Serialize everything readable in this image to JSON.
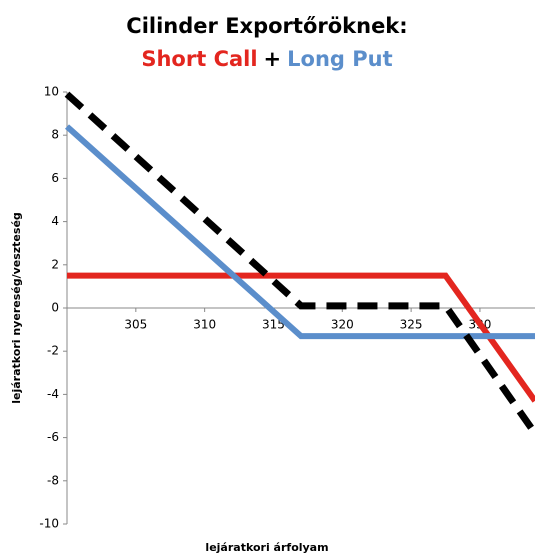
{
  "chart_data": {
    "type": "line",
    "title": "Cilinder Exportőröknek:",
    "legend_separator": "+",
    "xlabel": "lejáratkori árfolyam",
    "ylabel": "lejáratkori nyereség/veszteség",
    "xlim": [
      300,
      334
    ],
    "ylim": [
      -10,
      10
    ],
    "xticks": [
      305,
      310,
      315,
      320,
      325,
      330
    ],
    "yticks": [
      -10,
      -8,
      -6,
      -4,
      -2,
      0,
      2,
      4,
      6,
      8,
      10
    ],
    "grid": false,
    "series": [
      {
        "name": "Short Call",
        "color": "#e3261f",
        "x": [
          300,
          327.5,
          334
        ],
        "values": [
          1.5,
          1.5,
          -4.3
        ]
      },
      {
        "name": "Long Put",
        "color": "#5b8ecb",
        "x": [
          300,
          317,
          334
        ],
        "values": [
          8.4,
          -1.3,
          -1.3
        ]
      },
      {
        "color": "#000000",
        "dashed": true,
        "x": [
          300,
          317,
          327.5,
          334
        ],
        "values": [
          9.9,
          0.1,
          0.1,
          -5.8
        ]
      }
    ]
  }
}
